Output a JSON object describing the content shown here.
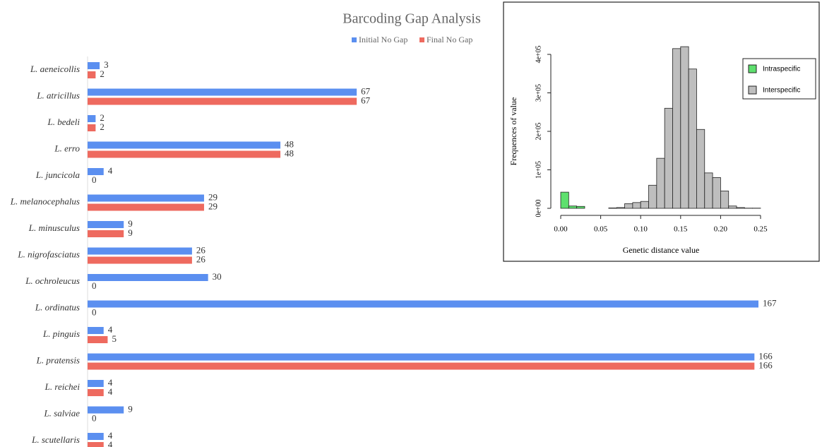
{
  "chart_data": [
    {
      "type": "bar",
      "orientation": "horizontal",
      "title": "Barcoding Gap Analysis",
      "legend": "top",
      "categories": [
        "L. aeneicollis",
        "L. atricillus",
        "L. bedeli",
        "L. erro",
        "L. juncicola",
        "L. melanocephalus",
        "L. minusculus",
        "L. nigrofasciatus",
        "L. ochroleucus",
        "L. ordinatus",
        "L. pinguis",
        "L. pratensis",
        "L. reichei",
        "L. salviae",
        "L. scutellaris"
      ],
      "series": [
        {
          "name": "Initial No Gap",
          "color": "#5b8ff0",
          "values": [
            3,
            67,
            2,
            48,
            4,
            29,
            9,
            26,
            30,
            167,
            4,
            166,
            4,
            9,
            4
          ]
        },
        {
          "name": "Final No Gap",
          "color": "#ee6a5f",
          "values": [
            2,
            67,
            2,
            48,
            0,
            29,
            9,
            26,
            0,
            0,
            5,
            166,
            4,
            0,
            4
          ]
        }
      ]
    },
    {
      "type": "histogram",
      "xlabel": "Genetic distance value",
      "ylabel": "Frequences of value",
      "legend": "top-right",
      "xlim": [
        0,
        0.25
      ],
      "xticks": [
        {
          "value": 0,
          "label": "0.00"
        },
        0.05,
        {
          "value": 0.1,
          "label": "0.10"
        },
        0.15,
        {
          "value": 0.2,
          "label": "0.20"
        },
        0.25
      ],
      "ylim": [
        0,
        400000
      ],
      "yticks": [
        {
          "value": 0,
          "label": "0e+00"
        },
        {
          "value": 100000,
          "label": "1e+05"
        },
        {
          "value": 200000,
          "label": "2e+05"
        },
        {
          "value": 300000,
          "label": "3e+05"
        },
        {
          "value": 400000,
          "label": "4e+05"
        }
      ],
      "series": [
        {
          "name": "Intraspecific",
          "color": "#5ee06e",
          "bins": [
            0,
            0.01,
            0.02,
            0.03
          ],
          "values": [
            42000,
            6000,
            5000
          ]
        },
        {
          "name": "Interspecific",
          "color": "#bebebe",
          "bins": [
            0.03,
            0.04,
            0.05,
            0.06,
            0.07,
            0.08,
            0.09,
            0.1,
            0.11,
            0.12,
            0.13,
            0.14,
            0.15,
            0.16,
            0.17,
            0.18,
            0.19,
            0.2,
            0.21,
            0.22,
            0.23,
            0.24,
            0.25
          ],
          "values": [
            0,
            0,
            0,
            1000,
            2000,
            12000,
            15000,
            18000,
            60000,
            130000,
            260000,
            415000,
            420000,
            362000,
            205000,
            92000,
            80000,
            45000,
            6000,
            2000,
            500,
            500
          ]
        }
      ]
    }
  ]
}
